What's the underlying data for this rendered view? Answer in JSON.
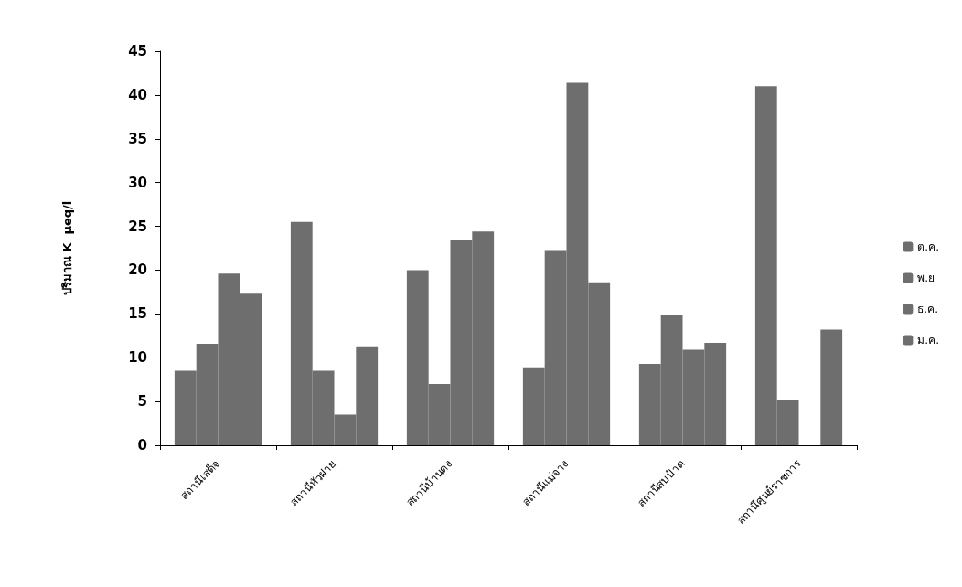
{
  "chart_data": {
    "type": "bar",
    "ylabel": "ปริมาณ K  µeq/l",
    "categories": [
      "สถานีเสด็จ",
      "สถานีหัวฝาย",
      "สถานีบ้านดง",
      "สถานีแม่จาง",
      "สถานีสบป้าด",
      "สถานีศูนย์ราชการ"
    ],
    "series": [
      {
        "name": "ต.ค.",
        "color": "#6e6e6e",
        "values": [
          8.5,
          25.5,
          20.0,
          8.9,
          9.3,
          41.0
        ]
      },
      {
        "name": "พ.ย",
        "color": "#6e6e6e",
        "values": [
          11.6,
          8.5,
          7.0,
          22.3,
          14.9,
          5.2
        ]
      },
      {
        "name": "ธ.ค.",
        "color": "#6e6e6e",
        "values": [
          19.6,
          3.5,
          23.5,
          41.4,
          10.9,
          null
        ]
      },
      {
        "name": "ม.ค.",
        "color": "#6e6e6e",
        "values": [
          17.3,
          11.3,
          24.4,
          18.6,
          11.7,
          13.2
        ]
      }
    ],
    "ylim": [
      0,
      45
    ],
    "yticks": [
      0,
      5,
      10,
      15,
      20,
      25,
      30,
      35,
      40,
      45
    ],
    "grid": false,
    "legend": "right"
  }
}
